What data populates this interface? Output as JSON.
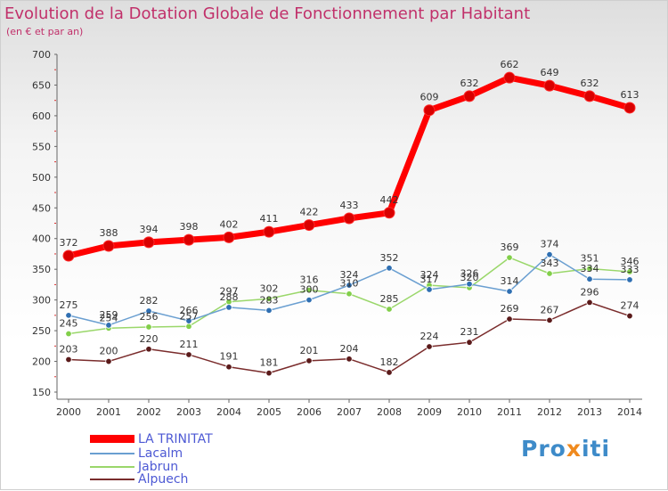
{
  "title": "Evolution de la Dotation Globale de Fonctionnement par Habitant",
  "subtitle": "(en € et par an)",
  "logo": {
    "pre": "Pro",
    "x": "x",
    "post": "iti"
  },
  "legend": [
    {
      "label": "LA TRINITAT",
      "color": "#ff0000"
    },
    {
      "label": "Lacalm",
      "color": "#6a9fd1"
    },
    {
      "label": "Jabrun",
      "color": "#9ad76a"
    },
    {
      "label": "Alpuech",
      "color": "#7a2c2c"
    }
  ],
  "chart_data": {
    "type": "line",
    "title": "Evolution de la Dotation Globale de Fonctionnement par Habitant",
    "ylabel": "(en € et par an)",
    "xlabel": "",
    "x": [
      "2000",
      "2001",
      "2002",
      "2003",
      "2004",
      "2005",
      "2006",
      "2007",
      "2008",
      "2009",
      "2010",
      "2011",
      "2012",
      "2013",
      "2014"
    ],
    "ylim": [
      150,
      700
    ],
    "yticks": [
      150,
      200,
      250,
      300,
      350,
      400,
      450,
      500,
      550,
      600,
      650,
      700
    ],
    "grid": false,
    "legend_position": "bottom-left",
    "series": [
      {
        "name": "LA TRINITAT",
        "color": "#ff0000",
        "marker": "#d90000",
        "values": [
          372,
          388,
          394,
          398,
          402,
          411,
          422,
          433,
          442,
          609,
          632,
          662,
          649,
          632,
          613
        ]
      },
      {
        "name": "Lacalm",
        "color": "#6a9fd1",
        "marker": "#2f6fb2",
        "values": [
          275,
          259,
          282,
          266,
          288,
          283,
          300,
          324,
          352,
          317,
          326,
          314,
          374,
          334,
          333
        ]
      },
      {
        "name": "Jabrun",
        "color": "#9ad76a",
        "marker": "#82cf4a",
        "values": [
          245,
          254,
          256,
          257,
          297,
          302,
          316,
          310,
          285,
          324,
          320,
          369,
          343,
          351,
          346
        ]
      },
      {
        "name": "Alpuech",
        "color": "#7a2c2c",
        "marker": "#5a1a1a",
        "values": [
          203,
          200,
          220,
          211,
          191,
          181,
          201,
          204,
          182,
          224,
          231,
          269,
          267,
          296,
          274
        ]
      }
    ]
  }
}
